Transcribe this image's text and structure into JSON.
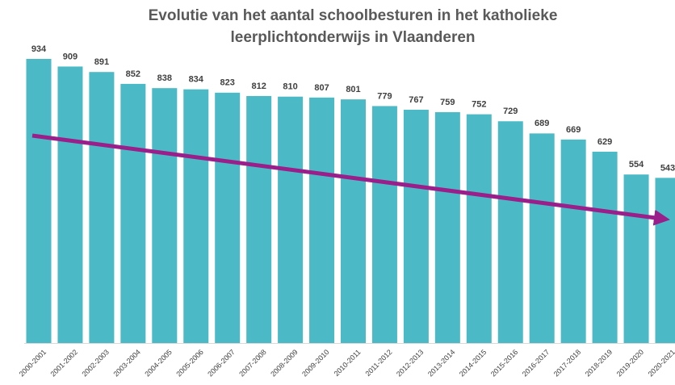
{
  "chart_data": {
    "type": "bar",
    "title": [
      "Evolutie van het aantal schoolbesturen in het katholieke",
      "leerplichtonderwijs in Vlaanderen"
    ],
    "categories": [
      "2000-2001",
      "2001-2002",
      "2002-2003",
      "2003-2004",
      "2004-2005",
      "2005-2006",
      "2006-2007",
      "2007-2008",
      "2008-2009",
      "2009-2010",
      "2010-2011",
      "2011-2012",
      "2012-2013",
      "2013-2014",
      "2014-2015",
      "2015-2016",
      "2016-2017",
      "2017-2018",
      "2018-2019",
      "2019-2020",
      "2020-2021"
    ],
    "values": [
      934,
      909,
      891,
      852,
      838,
      834,
      823,
      812,
      810,
      807,
      801,
      779,
      767,
      759,
      752,
      729,
      689,
      669,
      629,
      554,
      543
    ],
    "color": "#4bbac6"
  }
}
